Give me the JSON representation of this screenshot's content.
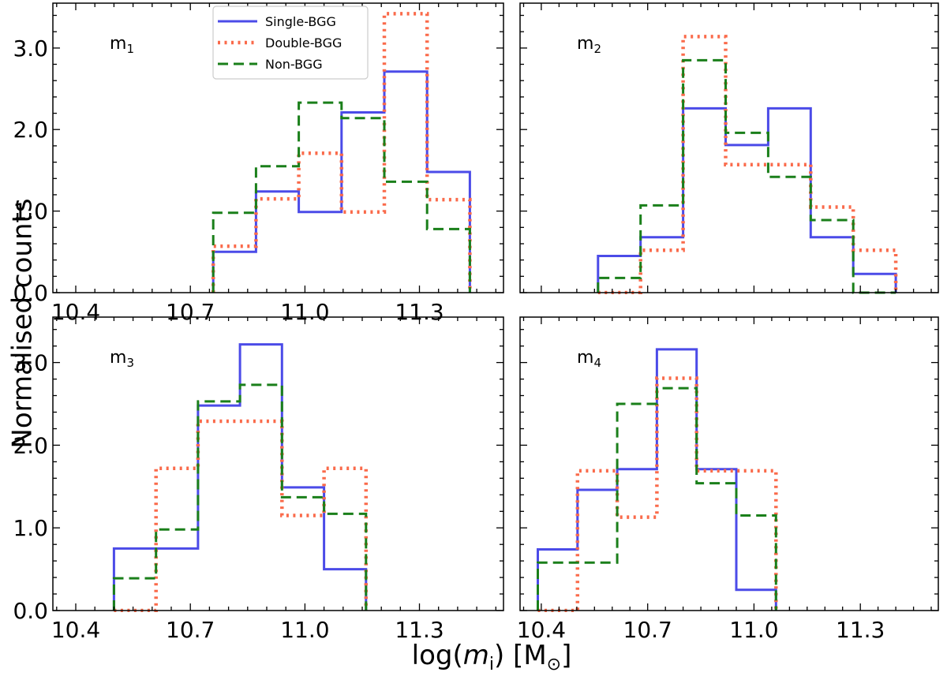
{
  "chart_data": {
    "type": "histogram",
    "layout": "2x2",
    "ylabel": "Normalised counts",
    "xlabel": "log(m_i) [M_⊙]",
    "xlabel_parts": {
      "prefix": "log(",
      "var": "m",
      "sub": "i",
      "suffix": ") [M",
      "sun": "⊙",
      "close": "]"
    },
    "ylim": [
      0,
      3.55
    ],
    "yticks": [
      0,
      1,
      2,
      3
    ],
    "ytick_labels": [
      "0.0",
      "1.0",
      "2.0",
      "3.0"
    ],
    "legend": [
      {
        "name": "Single-BGG",
        "color": "#4b4be8",
        "style": "solid"
      },
      {
        "name": "Double-BGG",
        "color": "#fa6a4a",
        "style": "dotted"
      },
      {
        "name": "Non-BGG",
        "color": "#1a7f1a",
        "style": "dashed"
      }
    ],
    "panels": [
      {
        "label": "m",
        "label_sub": "1",
        "xlim": [
          10.34,
          11.52
        ],
        "xticks": [
          10.4,
          10.7,
          11.0,
          11.3
        ],
        "xtick_labels": [
          "10.4",
          "10.7",
          "11.0",
          "11.3"
        ],
        "show_xtick_labels": true,
        "bin_edges": [
          10.76,
          10.872,
          10.984,
          11.096,
          11.208,
          11.32,
          11.432
        ],
        "series": [
          {
            "name": "Single-BGG",
            "values": [
              0.5,
              1.24,
              0.99,
              2.21,
              2.71,
              1.48
            ]
          },
          {
            "name": "Double-BGG",
            "values": [
              0.57,
              1.15,
              1.71,
              0.99,
              3.42,
              1.14
            ]
          },
          {
            "name": "Non-BGG",
            "values": [
              0.98,
              1.55,
              2.33,
              2.14,
              1.36,
              0.78
            ]
          }
        ]
      },
      {
        "label": "m",
        "label_sub": "2",
        "xlim": [
          10.34,
          11.52
        ],
        "xticks": [
          10.4,
          10.7,
          11.0,
          11.3
        ],
        "xtick_labels": [
          "10.4",
          "10.7",
          "11.0",
          "11.3"
        ],
        "show_xtick_labels": false,
        "bin_edges": [
          10.56,
          10.68,
          10.8,
          10.92,
          11.04,
          11.16,
          11.28,
          11.4
        ],
        "series": [
          {
            "name": "Single-BGG",
            "values": [
              0.45,
              0.68,
              2.26,
              1.81,
              2.26,
              0.68,
              0.23
            ]
          },
          {
            "name": "Double-BGG",
            "values": [
              0.0,
              0.52,
              3.14,
              1.57,
              1.57,
              1.05,
              0.52
            ]
          },
          {
            "name": "Non-BGG",
            "values": [
              0.18,
              1.07,
              2.85,
              1.96,
              1.42,
              0.89,
              0.0
            ]
          }
        ]
      },
      {
        "label": "m",
        "label_sub": "3",
        "xlim": [
          10.34,
          11.52
        ],
        "xticks": [
          10.4,
          10.7,
          11.0,
          11.3
        ],
        "xtick_labels": [
          "10.4",
          "10.7",
          "11.0",
          "11.3"
        ],
        "show_xtick_labels": true,
        "bin_edges": [
          10.5,
          10.61,
          10.72,
          10.83,
          10.94,
          11.05,
          11.16
        ],
        "series": [
          {
            "name": "Single-BGG",
            "values": [
              0.75,
              0.75,
              2.48,
              3.22,
              1.49,
              0.5
            ]
          },
          {
            "name": "Double-BGG",
            "values": [
              0.0,
              1.72,
              2.29,
              2.29,
              1.15,
              1.72
            ]
          },
          {
            "name": "Non-BGG",
            "values": [
              0.39,
              0.98,
              2.53,
              2.73,
              1.37,
              1.17
            ]
          }
        ]
      },
      {
        "label": "m",
        "label_sub": "4",
        "xlim": [
          10.34,
          11.52
        ],
        "xticks": [
          10.4,
          10.7,
          11.0,
          11.3
        ],
        "xtick_labels": [
          "10.4",
          "10.7",
          "11.0",
          "11.3"
        ],
        "show_xtick_labels": true,
        "bin_edges": [
          10.39,
          10.502,
          10.614,
          10.726,
          10.838,
          10.95,
          11.062
        ],
        "series": [
          {
            "name": "Single-BGG",
            "values": [
              0.74,
              1.46,
              1.71,
              3.16,
              1.71,
              0.25
            ]
          },
          {
            "name": "Double-BGG",
            "values": [
              0.0,
              1.69,
              1.13,
              2.81,
              1.69,
              1.69
            ]
          },
          {
            "name": "Non-BGG",
            "values": [
              0.58,
              0.58,
              2.5,
              2.69,
              1.54,
              1.15
            ]
          }
        ]
      }
    ]
  }
}
